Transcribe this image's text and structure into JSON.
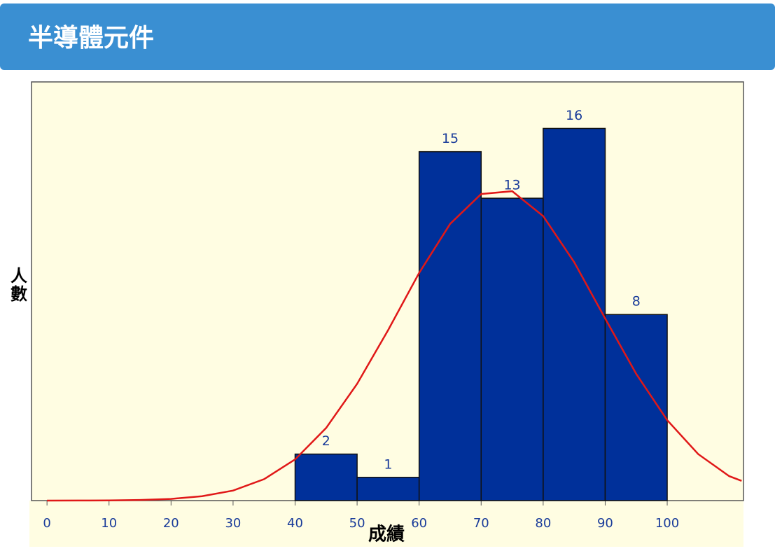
{
  "chart_data": {
    "type": "histogram",
    "title": "半導體元件",
    "x_label": "成績",
    "y_label": "人數",
    "bins": [
      40,
      50,
      60,
      70,
      80,
      90,
      100
    ],
    "values": [
      2,
      1,
      15,
      13,
      16,
      8
    ],
    "color": "#00309a",
    "curve": {
      "color": "#e01818",
      "x": [
        0,
        5,
        10,
        15,
        20,
        25,
        30,
        35,
        40,
        45,
        50,
        55,
        60,
        65,
        70,
        75,
        80,
        85,
        90,
        95,
        100,
        105,
        110,
        112
      ],
      "y": [
        0,
        0.0025,
        0.008,
        0.026,
        0.073,
        0.19,
        0.43,
        0.92,
        1.77,
        3.12,
        5.02,
        7.33,
        9.79,
        11.9,
        13.18,
        13.3,
        12.23,
        10.25,
        7.83,
        5.45,
        3.46,
        2.0,
        1.05,
        0.85
      ]
    },
    "xlim": [
      -2.5,
      112.3
    ],
    "ylim": [
      0,
      18
    ],
    "xticks": [
      0,
      10,
      20,
      30,
      40,
      50,
      60,
      70,
      80,
      90,
      100
    ]
  }
}
